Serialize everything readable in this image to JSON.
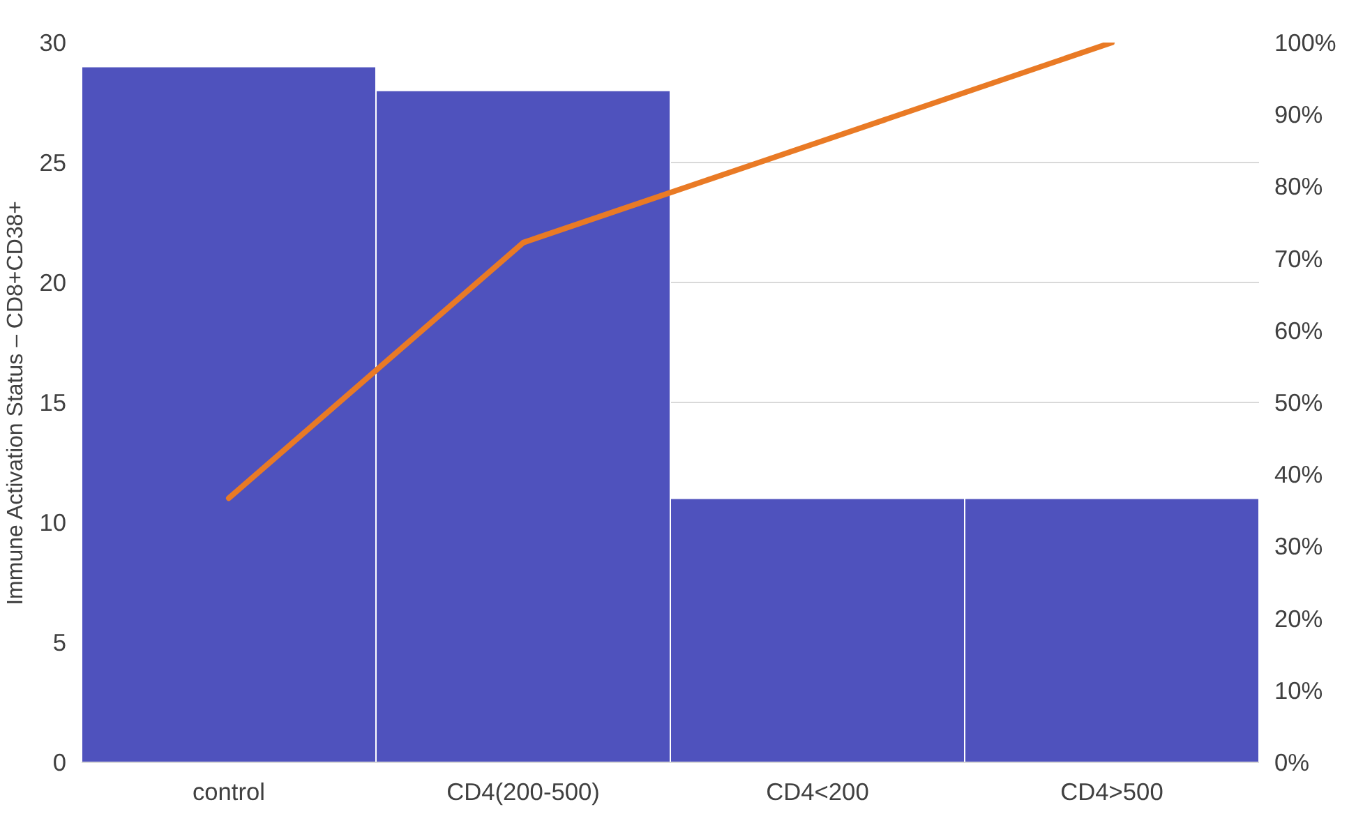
{
  "chart_data": {
    "type": "bar",
    "ylabel": "Immune Activation Status – CD8+CD38+",
    "categories": [
      "control",
      "CD4(200-500)",
      "CD4<200",
      "CD4>500"
    ],
    "series": [
      {
        "color": "#4f52bd",
        "values": [
          29,
          28,
          11,
          11
        ]
      },
      {
        "type": "line",
        "axis": "y2",
        "color": "#e97a25",
        "values": [
          36.7,
          72.2,
          86.1,
          100
        ]
      }
    ],
    "ylim": [
      0,
      30
    ],
    "yticks": [
      0,
      5,
      10,
      15,
      20,
      25,
      30
    ],
    "y2lim": [
      0,
      100
    ],
    "y2ticks": [
      {
        "value": 0,
        "label": "0%"
      },
      {
        "value": 10,
        "label": "10%"
      },
      {
        "value": 20,
        "label": "20%"
      },
      {
        "value": 30,
        "label": "30%"
      },
      {
        "value": 40,
        "label": "40%"
      },
      {
        "value": 50,
        "label": "50%"
      },
      {
        "value": 60,
        "label": "60%"
      },
      {
        "value": 70,
        "label": "70%"
      },
      {
        "value": 80,
        "label": "80%"
      },
      {
        "value": 90,
        "label": "90%"
      },
      {
        "value": 100,
        "label": "100%"
      }
    ],
    "grid": "y",
    "marker": "none",
    "line_style": "solid"
  }
}
